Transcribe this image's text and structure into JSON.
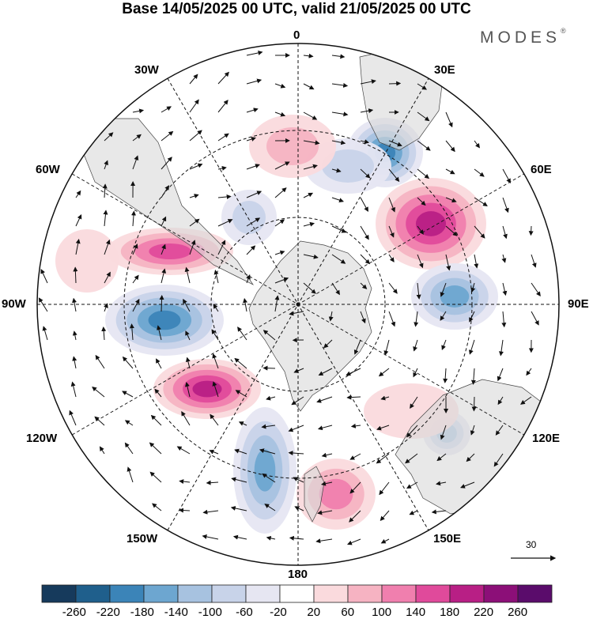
{
  "title": "Base 14/05/2025 00 UTC, valid 21/05/2025 00 UTC",
  "brand": {
    "name": "MODES",
    "mark": "®"
  },
  "longitude_labels": {
    "lon_0": "0",
    "lon_30e": "30E",
    "lon_60e": "60E",
    "lon_90e": "90E",
    "lon_120e": "120E",
    "lon_150e": "150E",
    "lon_180": "180",
    "lon_150w": "150W",
    "lon_120w": "120W",
    "lon_90w": "90W",
    "lon_60w": "60W",
    "lon_30w": "30W"
  },
  "vector_scale": {
    "label": "30"
  },
  "colorbar": {
    "colors": [
      "#163a5c",
      "#1f5f8c",
      "#3b84b8",
      "#6da6d0",
      "#a7c2e0",
      "#c8d3e9",
      "#e6e6f2",
      "#ffffff",
      "#fadadd",
      "#f6b3c2",
      "#f07fae",
      "#e04a9b",
      "#b81f85",
      "#8c0f78",
      "#5a0c6b"
    ],
    "labels": [
      "-260",
      "-220",
      "-180",
      "-140",
      "-100",
      "-60",
      "-20",
      "20",
      "60",
      "100",
      "140",
      "180",
      "220",
      "260"
    ]
  },
  "anomaly_centres": [
    {
      "id": "h1",
      "value": 200,
      "rx": 70,
      "ry": 58
    },
    {
      "id": "l1",
      "value": -190,
      "rx": 48,
      "ry": 44
    },
    {
      "id": "l2",
      "value": -150,
      "rx": 55,
      "ry": 42
    },
    {
      "id": "h2",
      "value": 170,
      "rx": 80,
      "ry": 30
    },
    {
      "id": "l3",
      "value": -180,
      "rx": 75,
      "ry": 45
    },
    {
      "id": "h3",
      "value": 200,
      "rx": 68,
      "ry": 38
    },
    {
      "id": "l4",
      "value": -170,
      "rx": 40,
      "ry": 80
    },
    {
      "id": "h4",
      "value": 130,
      "rx": 50,
      "ry": 45
    },
    {
      "id": "l5",
      "value": -130,
      "rx": 30,
      "ry": 28
    },
    {
      "id": "l6",
      "value": -70,
      "rx": 35,
      "ry": 35
    },
    {
      "id": "l7",
      "value": -60,
      "rx": 55,
      "ry": 35
    },
    {
      "id": "h5",
      "value": 60,
      "rx": 55,
      "ry": 40
    },
    {
      "id": "h6",
      "value": 50,
      "rx": 60,
      "ry": 35
    },
    {
      "id": "h7",
      "value": 50,
      "rx": 40,
      "ry": 40
    }
  ]
}
